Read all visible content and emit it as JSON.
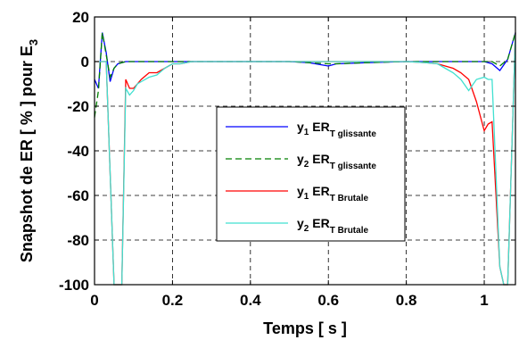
{
  "chart_data": {
    "type": "line",
    "xlabel": "Temps [ s ]",
    "ylabel": {
      "main": "Snapshot de ER [ % ] pour E",
      "sub": "3"
    },
    "xlim": [
      0,
      1.08
    ],
    "ylim": [
      -100,
      20
    ],
    "xticks": [
      0,
      0.2,
      0.4,
      0.6,
      0.8,
      1
    ],
    "xtick_labels": [
      "0",
      "0.2",
      "0.4",
      "0.6",
      "0.8",
      "1"
    ],
    "yticks": [
      -100,
      -80,
      -60,
      -40,
      -20,
      0,
      20
    ],
    "ytick_labels": [
      "-100",
      "-80",
      "-60",
      "-40",
      "-20",
      "0",
      "20"
    ],
    "grid": true,
    "legend_position": "center-right",
    "series": [
      {
        "legend": {
          "var": "y",
          "var_sub": "1",
          "name": "ER",
          "name_sub": "T glissante"
        },
        "color": "#0000ff",
        "dash": "solid",
        "x": [
          0,
          0.01,
          0.02,
          0.03,
          0.04,
          0.05,
          0.06,
          0.08,
          0.1,
          0.15,
          0.2,
          0.3,
          0.4,
          0.5,
          0.55,
          0.6,
          0.62,
          0.7,
          0.8,
          0.9,
          0.95,
          1.0,
          1.02,
          1.04,
          1.06,
          1.08
        ],
        "y": [
          -8,
          -12,
          13,
          4,
          -9,
          -3,
          -1,
          0,
          0,
          0,
          0,
          0,
          0,
          0,
          -0.5,
          -2,
          -1,
          -0.5,
          0,
          0,
          0,
          0,
          -1,
          -4,
          1,
          13
        ]
      },
      {
        "legend": {
          "var": "y",
          "var_sub": "2",
          "name": "ER",
          "name_sub": "T glissante"
        },
        "color": "#008000",
        "dash": "dashed",
        "x": [
          0,
          0.01,
          0.02,
          0.03,
          0.04,
          0.05,
          0.06,
          0.08,
          0.1,
          0.15,
          0.2,
          0.3,
          0.4,
          0.5,
          0.55,
          0.6,
          0.62,
          0.7,
          0.8,
          0.9,
          0.95,
          1.0,
          1.02,
          1.04,
          1.06,
          1.08
        ],
        "y": [
          -25,
          -13,
          13,
          3,
          -7,
          -3,
          -1,
          0,
          0,
          0,
          0,
          0,
          0,
          0,
          -0.5,
          -1,
          -1,
          -0.5,
          0,
          0,
          0,
          0,
          0,
          -2,
          1,
          13
        ]
      },
      {
        "legend": {
          "var": "y",
          "var_sub": "1",
          "name": "ER",
          "name_sub": "T Brutale"
        },
        "color": "#ff0000",
        "dash": "solid",
        "x": [
          0,
          0.03,
          0.05,
          0.07,
          0.08,
          0.09,
          0.1,
          0.11,
          0.12,
          0.14,
          0.16,
          0.18,
          0.2,
          0.22,
          0.25,
          0.3,
          0.4,
          0.5,
          0.6,
          0.7,
          0.8,
          0.85,
          0.88,
          0.9,
          0.92,
          0.94,
          0.96,
          0.98,
          1.0,
          1.01,
          1.02,
          1.04,
          1.05,
          1.06,
          1.08
        ],
        "y": [
          0,
          0,
          -100,
          -100,
          -8,
          -12,
          -12,
          -10,
          -8,
          -5,
          -5,
          -3,
          -1,
          -1,
          0,
          0,
          0,
          0,
          0,
          0,
          0,
          -0.5,
          -1,
          -2,
          -3,
          -5,
          -8,
          -18,
          -31,
          -28,
          -27,
          -92,
          -100,
          -100,
          13
        ]
      },
      {
        "legend": {
          "var": "y",
          "var_sub": "2",
          "name": "ER",
          "name_sub": "T Brutale"
        },
        "color": "#40e0d0",
        "dash": "solid",
        "x": [
          0,
          0.03,
          0.05,
          0.07,
          0.08,
          0.09,
          0.1,
          0.11,
          0.12,
          0.14,
          0.16,
          0.18,
          0.2,
          0.22,
          0.25,
          0.3,
          0.4,
          0.5,
          0.6,
          0.7,
          0.8,
          0.85,
          0.88,
          0.9,
          0.92,
          0.94,
          0.96,
          0.98,
          1.0,
          1.01,
          1.02,
          1.04,
          1.05,
          1.06,
          1.08
        ],
        "y": [
          0,
          0,
          -100,
          -100,
          -12,
          -15,
          -13,
          -10,
          -9,
          -7,
          -6,
          -3,
          -1,
          -1,
          0,
          0,
          0,
          0,
          0,
          0,
          0,
          -0.5,
          -1,
          -3,
          -5,
          -8,
          -13,
          -8,
          -7,
          -8,
          -8,
          -92,
          -100,
          -100,
          13
        ]
      }
    ]
  }
}
